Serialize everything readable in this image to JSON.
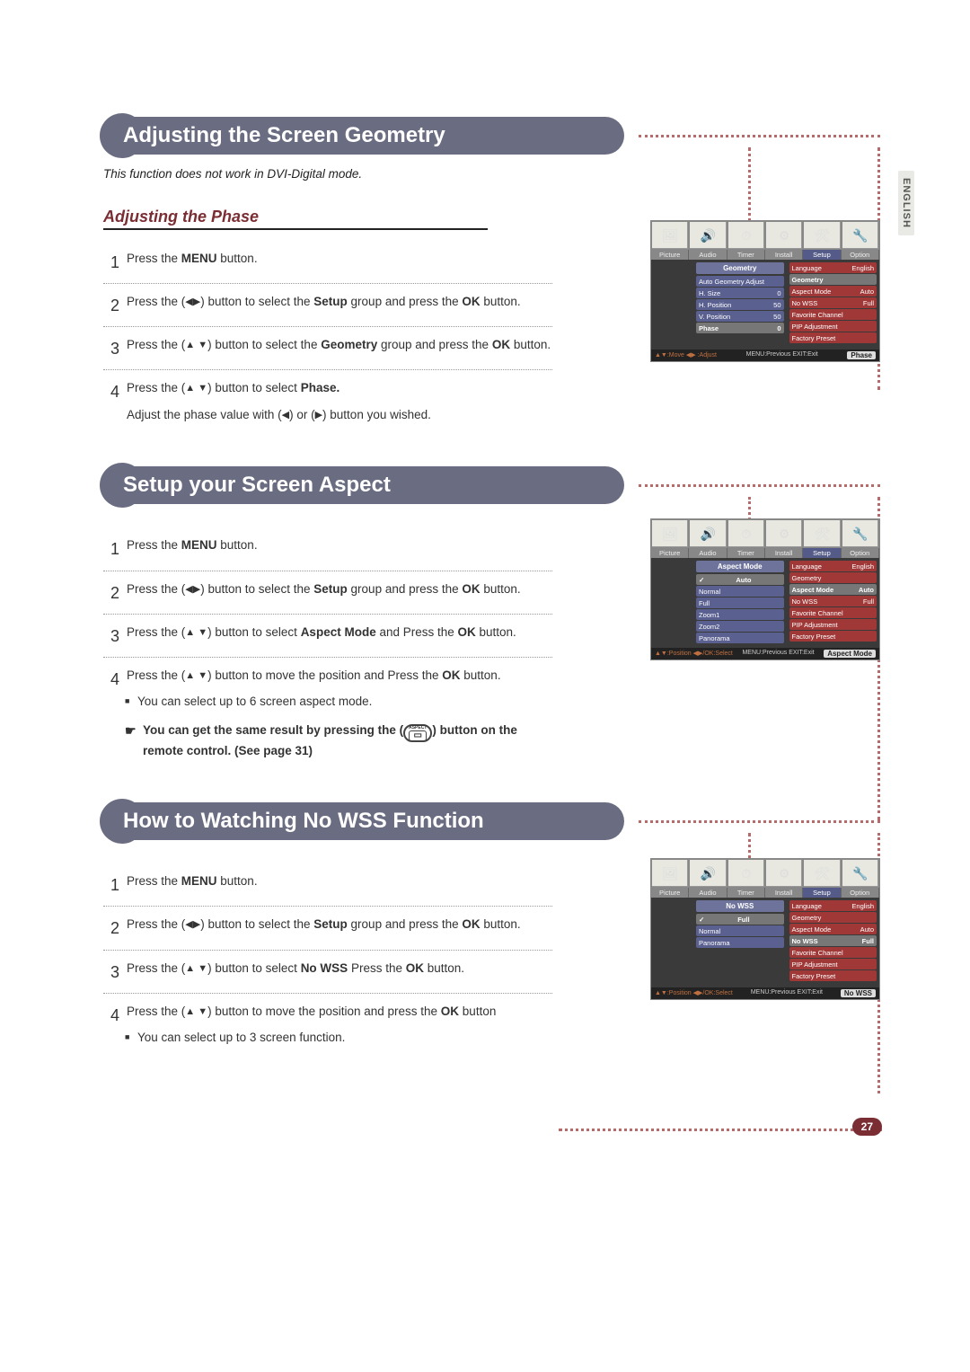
{
  "page": {
    "lang_tab": "ENGLISH",
    "number": "27"
  },
  "sec1": {
    "title": "Adjusting the Screen Geometry",
    "note": "This function does not work in DVI-Digital mode.",
    "subtitle": "Adjusting the Phase",
    "steps": {
      "s1": "Press the <b>MENU</b> button.",
      "s2": "Press the (<span class='arrow'>◀▶</span>) button to select the <b>Setup</b> group and press the <b>OK</b> button.",
      "s3": "Press the (<span class='arrow'>▲ ▼</span>) button to select the <b>Geometry</b> group and press the <b>OK</b> button.",
      "s4a": "Press the (<span class='arrow'>▲ ▼</span>) button to select <b>Phase.</b>",
      "s4b": "Adjust the phase value with (<span class='arrow'>◀</span>) or (<span class='arrow'>▶</span>) button you wished."
    },
    "osd": {
      "tabs": [
        "Picture",
        "Audio",
        "Timer",
        "Install",
        "Setup",
        "Option"
      ],
      "leftHeader": "Geometry",
      "left": [
        {
          "l": "Auto Geometry Adjust",
          "v": ""
        },
        {
          "l": "H. Size",
          "v": "0"
        },
        {
          "l": "H. Position",
          "v": "50"
        },
        {
          "l": "V. Position",
          "v": "50"
        },
        {
          "l": "Phase",
          "v": "0",
          "sel": true
        }
      ],
      "right": [
        {
          "l": "Language",
          "v": "English",
          "red": true
        },
        {
          "l": "Geometry",
          "v": "",
          "sel": true
        },
        {
          "l": "Aspect Mode",
          "v": "Auto",
          "red": true
        },
        {
          "l": "No WSS",
          "v": "Full",
          "red": true
        },
        {
          "l": "Favorite Channel",
          "v": "",
          "red": true
        },
        {
          "l": "PIP Adjustment",
          "v": "",
          "red": true
        },
        {
          "l": "Factory Preset",
          "v": "",
          "red": true
        }
      ],
      "foot_l": "▲▼:Move  ◀▶ :Adjust",
      "foot_m": "MENU:Previous  EXIT:Exit",
      "foot_r": "Phase"
    }
  },
  "sec2": {
    "title": "Setup your Screen Aspect",
    "steps": {
      "s1": "Press the <b>MENU</b> button.",
      "s2": "Press the (<span class='arrow'>◀▶</span>) button to select the <b>Setup</b> group and press the <b>OK</b> button.",
      "s3": "Press the (<span class='arrow'>▲ ▼</span>) button to select <b>Aspect Mode</b> and Press the <b>OK</b> button.",
      "s4": "Press the (<span class='arrow'>▲ ▼</span>) button to move the position and Press the <b>OK</b> button.",
      "b1": "You can select up to 6 screen aspect mode.",
      "h1": "You can get the same result by pressing the (<span class='aspect-btn'><span class='t'>ASPECT</span><span class='b'>▭</span></span>) button on the remote control. (See page 31)"
    },
    "osd": {
      "leftHeader": "Aspect Mode",
      "left": [
        {
          "l": "Auto",
          "chk": true,
          "sel": true
        },
        {
          "l": "Normal"
        },
        {
          "l": "Full"
        },
        {
          "l": "Zoom1"
        },
        {
          "l": "Zoom2"
        },
        {
          "l": "Panorama"
        }
      ],
      "right": [
        {
          "l": "Language",
          "v": "English",
          "red": true
        },
        {
          "l": "Geometry",
          "v": "",
          "red": true
        },
        {
          "l": "Aspect Mode",
          "v": "Auto",
          "sel": true
        },
        {
          "l": "No WSS",
          "v": "Full",
          "red": true
        },
        {
          "l": "Favorite Channel",
          "v": "",
          "red": true
        },
        {
          "l": "PIP Adjustment",
          "v": "",
          "red": true
        },
        {
          "l": "Factory Preset",
          "v": "",
          "red": true
        }
      ],
      "foot_l": "▲▼:Position ◀▶/OK:Select",
      "foot_m": "MENU:Previous  EXIT:Exit",
      "foot_r": "Aspect Mode"
    }
  },
  "sec3": {
    "title": "How to Watching No WSS Function",
    "steps": {
      "s1": "Press the <b>MENU</b> button.",
      "s2": "Press the (<span class='arrow'>◀▶</span>) button to select the <b>Setup</b> group and press the <b>OK</b> button.",
      "s3": "Press the (<span class='arrow'>▲ ▼</span>) button to select <b>No WSS</b> Press the <b>OK</b> button.",
      "s4": "Press the (<span class='arrow'>▲ ▼</span>) button to move the position and press the <b>OK</b> button",
      "b1": "You can select up to 3 screen function."
    },
    "osd": {
      "leftHeader": "No WSS",
      "left": [
        {
          "l": "Full",
          "chk": true,
          "sel": true
        },
        {
          "l": "Normal"
        },
        {
          "l": "Panorama"
        }
      ],
      "right": [
        {
          "l": "Language",
          "v": "English",
          "red": true
        },
        {
          "l": "Geometry",
          "v": "",
          "red": true
        },
        {
          "l": "Aspect Mode",
          "v": "Auto",
          "red": true
        },
        {
          "l": "No WSS",
          "v": "Full",
          "sel": true
        },
        {
          "l": "Favorite Channel",
          "v": "",
          "red": true
        },
        {
          "l": "PIP Adjustment",
          "v": "",
          "red": true
        },
        {
          "l": "Factory Preset",
          "v": "",
          "red": true
        }
      ],
      "foot_l": "▲▼:Position ◀▶/OK:Select",
      "foot_m": "MENU:Previous  EXIT:Exit",
      "foot_r": "No WSS"
    }
  },
  "osd_icons": [
    "🖼",
    "🔊",
    "⏱",
    "⚙",
    "🛠",
    "🔧"
  ]
}
